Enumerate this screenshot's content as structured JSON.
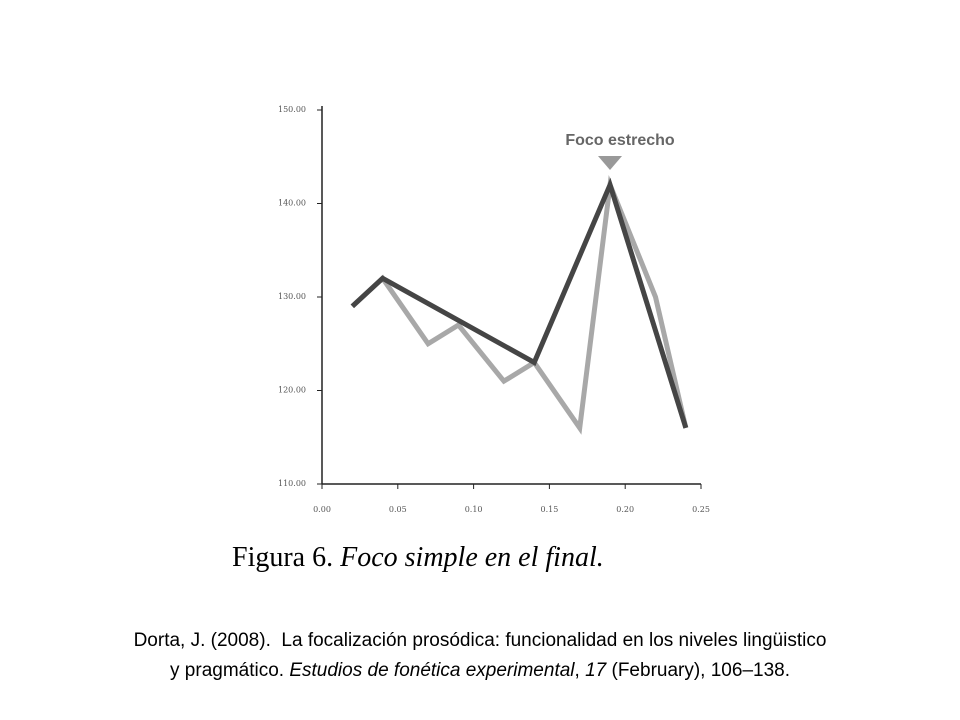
{
  "chart_data": {
    "type": "line",
    "annotation": "Foco estrecho",
    "xlim": [
      0,
      0.25
    ],
    "xticks": [
      {
        "value": 0,
        "label": "0.00"
      },
      {
        "value": 0.05,
        "label": "0.05"
      },
      {
        "value": 0.1,
        "label": "0.10"
      },
      {
        "value": 0.15,
        "label": "0.15"
      },
      {
        "value": 0.2,
        "label": "0.20"
      },
      {
        "value": 0.25,
        "label": "0.25"
      }
    ],
    "ylim": [
      110,
      150
    ],
    "yticks": [
      {
        "value": 110,
        "label": "110.00"
      },
      {
        "value": 120,
        "label": "120.00"
      },
      {
        "value": 130,
        "label": "130.00"
      },
      {
        "value": 140,
        "label": "140.00"
      },
      {
        "value": 150,
        "label": "150.00"
      }
    ],
    "series": [
      {
        "color": "#a8a8a8",
        "x": [
          0.02,
          0.04,
          0.07,
          0.09,
          0.12,
          0.14,
          0.17,
          0.19,
          0.22,
          0.24
        ],
        "values": [
          129,
          132,
          125,
          127,
          121,
          123,
          116,
          142,
          130,
          116
        ]
      },
      {
        "color": "#454545",
        "x": [
          0.02,
          0.04,
          0.14,
          0.19,
          0.24
        ],
        "values": [
          129,
          132,
          123,
          142,
          116
        ]
      }
    ]
  },
  "caption": {
    "label": "Figura 6.",
    "text": "Foco simple en el final."
  },
  "citation": {
    "lines": [
      [
        {
          "text": "Dorta, J. (2008).  La focalización prosódica: funcionalidad en los niveles lingüistico",
          "italic": false
        }
      ],
      [
        {
          "text": "y pragmático. ",
          "italic": false
        },
        {
          "text": "Estudios de fonética experimental",
          "italic": true
        },
        {
          "text": ", ",
          "italic": false
        },
        {
          "text": "17",
          "italic": true
        },
        {
          "text": " (February), 106–138.",
          "italic": false
        }
      ]
    ]
  }
}
